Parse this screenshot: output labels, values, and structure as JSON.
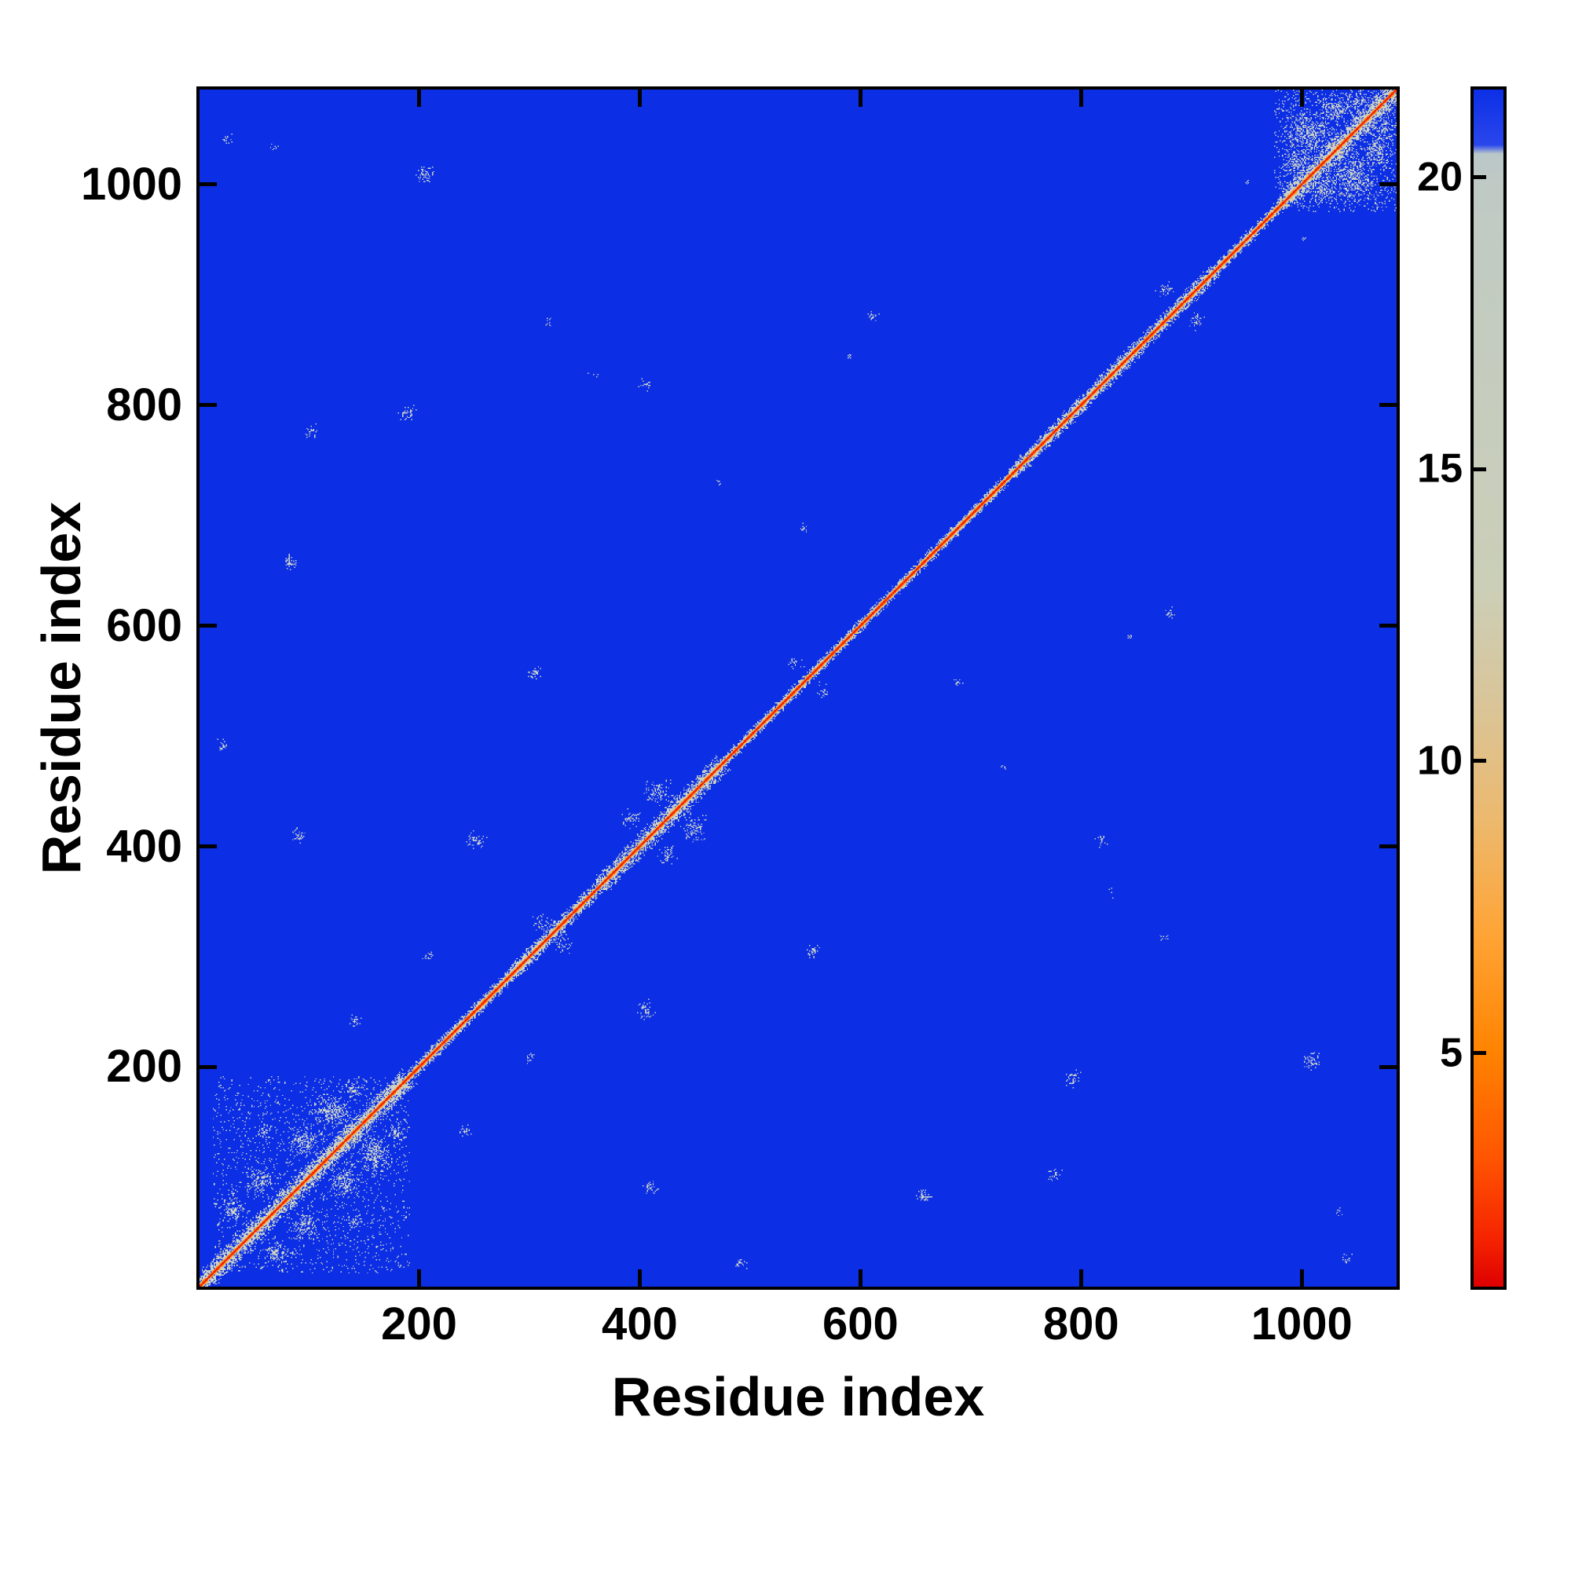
{
  "figure": {
    "xlabel": "Residue index",
    "ylabel": "Residue index"
  },
  "axis": {
    "min": 1,
    "max": 1086,
    "ticks": [
      200,
      400,
      600,
      800,
      1000
    ]
  },
  "colorbar": {
    "min": 1,
    "max": 21.5,
    "ticks": [
      5,
      10,
      15,
      20
    ],
    "stops": [
      {
        "v": 1.0,
        "color": "#dd0000"
      },
      {
        "v": 1.8,
        "color": "#f52300"
      },
      {
        "v": 3.2,
        "color": "#ff5500"
      },
      {
        "v": 5.0,
        "color": "#ff8300"
      },
      {
        "v": 7.0,
        "color": "#ffa435"
      },
      {
        "v": 9.0,
        "color": "#ecb96e"
      },
      {
        "v": 11.0,
        "color": "#d9c599"
      },
      {
        "v": 13.0,
        "color": "#cbcfb8"
      },
      {
        "v": 19.8,
        "color": "#c0cac4"
      },
      {
        "v": 20.4,
        "color": "#bac7c9"
      },
      {
        "v": 20.55,
        "color": "#2a47ec"
      },
      {
        "v": 21.5,
        "color": "#0c2fe6"
      }
    ]
  },
  "chart_data": {
    "type": "heatmap",
    "title": "",
    "xlabel": "Residue index",
    "ylabel": "Residue index",
    "description": "Symmetric residue-residue distance map of a ~1086-residue protein. Short distances (red/orange) lie on the main diagonal, a speckled pale contact band flanks it, scattered pale off-diagonal contact clusters appear mirrored across the diagonal, and the vast majority of the matrix is at/above the colorbar maximum (solid blue).",
    "n_residues": 1086,
    "x_range": [
      1,
      1086
    ],
    "y_range": [
      1,
      1086
    ],
    "value_range": [
      1,
      21.5
    ],
    "colors": {
      "far": "#0c2fe6",
      "diag": "#e60800",
      "near1": "#ff4a00",
      "near2": "#ff9a28",
      "tan": "#d8c08a",
      "pale": "#c5cec5",
      "pale2": "#d0d7ce"
    },
    "band_default_halfwidth": 7,
    "band_segments": [
      {
        "from": 1,
        "to": 185,
        "halfwidth": 14
      },
      {
        "from": 185,
        "to": 280,
        "halfwidth": 8
      },
      {
        "from": 280,
        "to": 360,
        "halfwidth": 10
      },
      {
        "from": 360,
        "to": 470,
        "halfwidth": 13
      },
      {
        "from": 470,
        "to": 740,
        "halfwidth": 7
      },
      {
        "from": 740,
        "to": 920,
        "halfwidth": 10
      },
      {
        "from": 920,
        "to": 980,
        "halfwidth": 8
      },
      {
        "from": 980,
        "to": 1086,
        "halfwidth": 15
      }
    ],
    "noise_regions": [
      {
        "x0": 12,
        "x1": 190,
        "y0": 12,
        "y1": 190,
        "density": 0.05
      },
      {
        "x0": 975,
        "x1": 1085,
        "y0": 975,
        "y1": 1085,
        "density": 0.1
      }
    ],
    "contact_clusters": [
      {
        "x": 30,
        "y": 68,
        "rx": 12,
        "ry": 12,
        "density": 0.45
      },
      {
        "x": 55,
        "y": 95,
        "rx": 16,
        "ry": 14,
        "density": 0.5
      },
      {
        "x": 60,
        "y": 140,
        "rx": 10,
        "ry": 9,
        "density": 0.35
      },
      {
        "x": 95,
        "y": 132,
        "rx": 18,
        "ry": 15,
        "density": 0.55
      },
      {
        "x": 120,
        "y": 158,
        "rx": 20,
        "ry": 16,
        "density": 0.6
      },
      {
        "x": 140,
        "y": 178,
        "rx": 12,
        "ry": 10,
        "density": 0.45
      },
      {
        "x": 140,
        "y": 240,
        "rx": 8,
        "ry": 7,
        "density": 0.35
      },
      {
        "x": 207,
        "y": 298,
        "rx": 6,
        "ry": 5,
        "density": 0.3
      },
      {
        "x": 310,
        "y": 330,
        "rx": 10,
        "ry": 8,
        "density": 0.35
      },
      {
        "x": 392,
        "y": 424,
        "rx": 10,
        "ry": 9,
        "density": 0.45
      },
      {
        "x": 415,
        "y": 448,
        "rx": 14,
        "ry": 12,
        "density": 0.5
      },
      {
        "x": 540,
        "y": 565,
        "rx": 8,
        "ry": 7,
        "density": 0.35
      },
      {
        "x": 875,
        "y": 905,
        "rx": 8,
        "ry": 7,
        "density": 0.4
      },
      {
        "x": 90,
        "y": 408,
        "rx": 9,
        "ry": 8,
        "density": 0.4
      },
      {
        "x": 250,
        "y": 404,
        "rx": 10,
        "ry": 9,
        "density": 0.45
      },
      {
        "x": 20,
        "y": 490,
        "rx": 6,
        "ry": 6,
        "density": 0.4
      },
      {
        "x": 82,
        "y": 657,
        "rx": 7,
        "ry": 7,
        "density": 0.4
      },
      {
        "x": 102,
        "y": 775,
        "rx": 7,
        "ry": 7,
        "density": 0.4
      },
      {
        "x": 188,
        "y": 792,
        "rx": 9,
        "ry": 8,
        "density": 0.45
      },
      {
        "x": 304,
        "y": 556,
        "rx": 7,
        "ry": 6,
        "density": 0.4
      },
      {
        "x": 315,
        "y": 875,
        "rx": 5,
        "ry": 5,
        "density": 0.35
      },
      {
        "x": 357,
        "y": 826,
        "rx": 5,
        "ry": 5,
        "density": 0.3
      },
      {
        "x": 405,
        "y": 818,
        "rx": 7,
        "ry": 6,
        "density": 0.4
      },
      {
        "x": 470,
        "y": 730,
        "rx": 4,
        "ry": 4,
        "density": 0.3
      },
      {
        "x": 548,
        "y": 688,
        "rx": 5,
        "ry": 5,
        "density": 0.3
      },
      {
        "x": 556,
        "y": 304,
        "rx": 5,
        "ry": 5,
        "density": 0.3
      },
      {
        "x": 590,
        "y": 845,
        "rx": 4,
        "ry": 4,
        "density": 0.3
      },
      {
        "x": 610,
        "y": 880,
        "rx": 6,
        "ry": 5,
        "density": 0.35
      },
      {
        "x": 24,
        "y": 1040,
        "rx": 5,
        "ry": 5,
        "density": 0.35
      },
      {
        "x": 68,
        "y": 1032,
        "rx": 5,
        "ry": 5,
        "density": 0.3
      },
      {
        "x": 205,
        "y": 1008,
        "rx": 9,
        "ry": 8,
        "density": 0.5
      },
      {
        "x": 950,
        "y": 1000,
        "rx": 5,
        "ry": 5,
        "density": 0.3
      },
      {
        "x": 995,
        "y": 1018,
        "rx": 14,
        "ry": 12,
        "density": 0.5
      },
      {
        "x": 1005,
        "y": 1045,
        "rx": 26,
        "ry": 22,
        "density": 0.5
      },
      {
        "x": 1030,
        "y": 1068,
        "rx": 18,
        "ry": 13,
        "density": 0.5
      },
      {
        "x": 1050,
        "y": 1075,
        "rx": 12,
        "ry": 8,
        "density": 0.5
      }
    ]
  }
}
